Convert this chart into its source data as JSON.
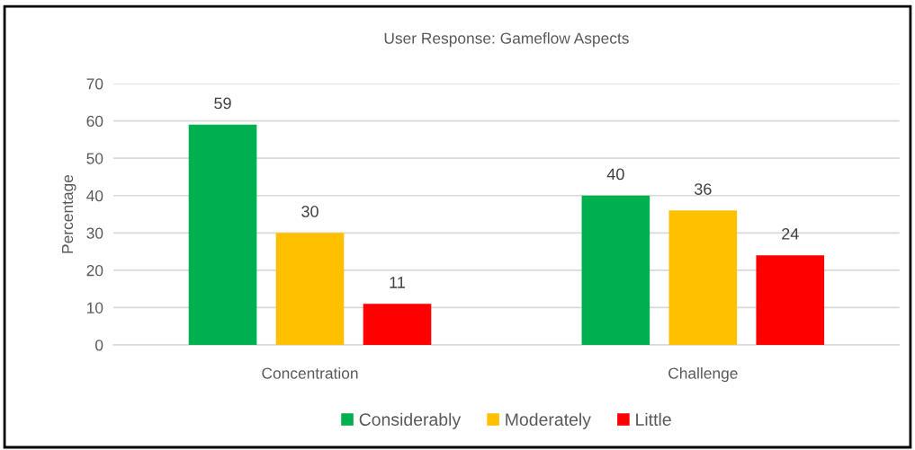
{
  "chart_data": {
    "type": "bar",
    "title": "User Response: Gameflow Aspects",
    "ylabel": "Percentage",
    "categories": [
      "Concentration",
      "Challenge"
    ],
    "series": [
      {
        "name": "Considerably",
        "color": "#00b050",
        "values": [
          59,
          40
        ]
      },
      {
        "name": "Moderately",
        "color": "#ffc000",
        "values": [
          30,
          36
        ]
      },
      {
        "name": "Little",
        "color": "#ff0000",
        "values": [
          11,
          24
        ]
      }
    ],
    "ylim": [
      0,
      70
    ],
    "yticks": [
      0,
      10,
      20,
      30,
      40,
      50,
      60,
      70
    ],
    "grid": "y",
    "legend": "bottom",
    "data_labels": true
  }
}
